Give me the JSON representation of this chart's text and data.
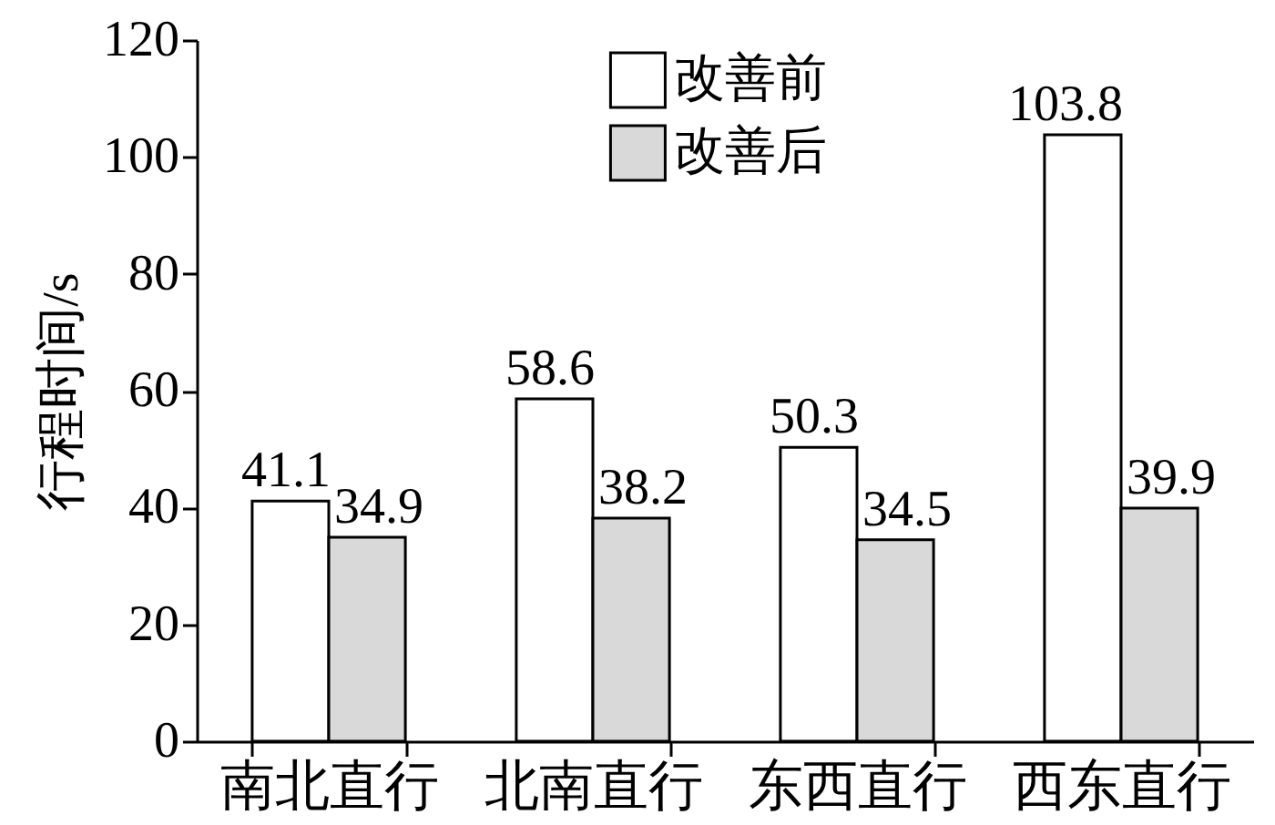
{
  "chart_data": {
    "type": "bar",
    "ylabel": "行程时间/s",
    "categories": [
      "南北直行",
      "北南直行",
      "东西直行",
      "西东直行"
    ],
    "series": [
      {
        "name": "改善前",
        "color": "#ffffff",
        "values": [
          41.1,
          58.6,
          50.3,
          103.8
        ]
      },
      {
        "name": "改善后",
        "color": "#d9d9d9",
        "values": [
          34.9,
          38.2,
          34.5,
          39.9
        ]
      }
    ],
    "ylim": [
      0,
      120
    ],
    "yticks": [
      0,
      20,
      40,
      60,
      80,
      100,
      120
    ],
    "grid": false,
    "legend": "top",
    "data_labels": true
  }
}
